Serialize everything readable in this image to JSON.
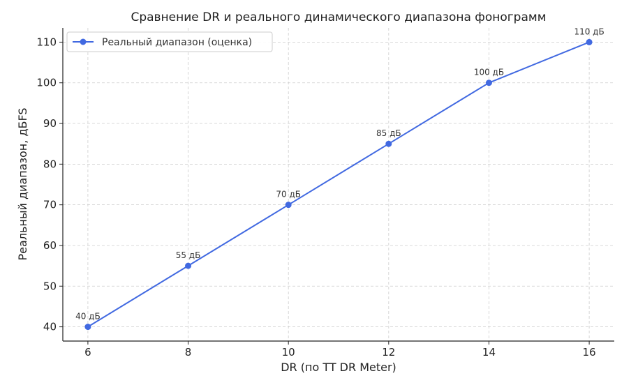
{
  "chart_data": {
    "type": "line",
    "title": "Сравнение DR и реального динамического диапазона фонограмм",
    "xlabel": "DR (по TT DR Meter)",
    "ylabel": "Реальный диапазон, дБFS",
    "x": [
      6,
      8,
      10,
      12,
      14,
      16
    ],
    "xticks": [
      "6",
      "8",
      "10",
      "12",
      "14",
      "16"
    ],
    "yticks": [
      "40",
      "50",
      "60",
      "70",
      "80",
      "90",
      "100",
      "110"
    ],
    "xlim": [
      5.5,
      16.5
    ],
    "ylim": [
      36.5,
      113.5
    ],
    "grid": true,
    "legend_position": "top-left",
    "series": [
      {
        "name": "Реальный диапазон (оценка)",
        "values": [
          40,
          55,
          70,
          85,
          100,
          110
        ],
        "labels": [
          "40 дБ",
          "55 дБ",
          "70 дБ",
          "85 дБ",
          "100 дБ",
          "110 дБ"
        ],
        "color": "#4169e1"
      }
    ]
  }
}
